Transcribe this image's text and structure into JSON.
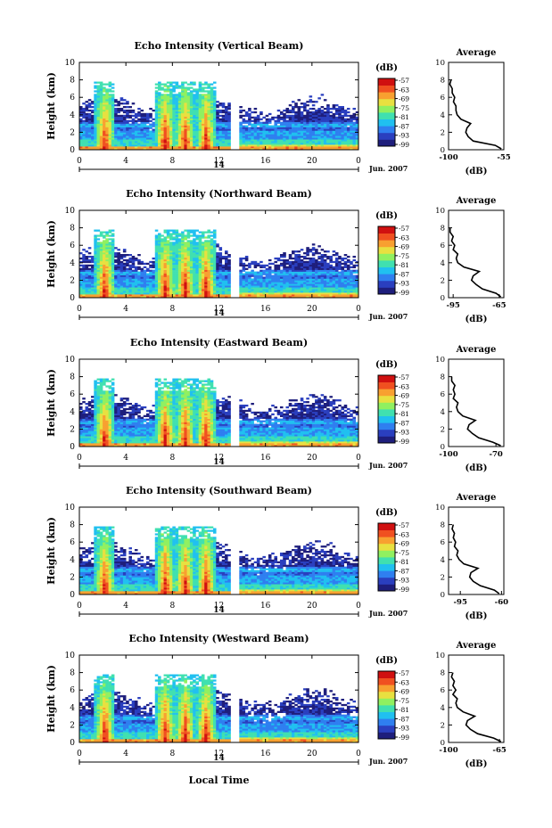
{
  "figure": {
    "xlabel": "Local Time",
    "date_label": "Jun. 2007",
    "day_label": "14",
    "unit_label": "(dB)",
    "colorbar_ticks": [
      "-57",
      "-63",
      "-69",
      "-75",
      "-81",
      "-87",
      "-93",
      "-99"
    ],
    "colors": {
      "colormap": [
        "#1e1e7c",
        "#2a3fbf",
        "#2f7ff0",
        "#20c0f0",
        "#40e0b0",
        "#90f060",
        "#e8e040",
        "#f8a030",
        "#f05020",
        "#d01010"
      ],
      "axis": "#000000",
      "profile_line": "#000000"
    }
  },
  "chart_data": [
    {
      "type": "heatmap",
      "title": "Echo Intensity (Vertical Beam)",
      "ylabel": "Height (km)",
      "x_ticks": [
        "0",
        "4",
        "8",
        "12",
        "16",
        "20",
        "0"
      ],
      "y_ticks": [
        "0",
        "2",
        "4",
        "6",
        "8",
        "10"
      ],
      "xlim": [
        0,
        24
      ],
      "ylim": [
        0,
        10
      ],
      "colorbar_range_db": [
        -99,
        -57
      ],
      "data_gap_hours": [
        13.0,
        13.5
      ],
      "convective_bursts_hours": [
        2.2,
        7.4,
        9.1,
        10.9
      ],
      "profile": {
        "title": "Average",
        "xlabel": "(dB)",
        "x_ticks": [
          "-100",
          "-55"
        ],
        "y_ticks": [
          "0",
          "2",
          "4",
          "6",
          "8",
          "10"
        ],
        "ylim": [
          0,
          10
        ],
        "xlim": [
          -100,
          -55
        ],
        "height_km": [
          0.1,
          0.5,
          1.0,
          1.5,
          2.0,
          2.5,
          3.0,
          3.5,
          4.0,
          4.5,
          5.0,
          5.5,
          6.0,
          6.5,
          7.0,
          7.5,
          8.0
        ],
        "db": [
          -57,
          -62,
          -80,
          -84,
          -86,
          -85,
          -82,
          -90,
          -93,
          -94,
          -94,
          -96,
          -95,
          -97,
          -97,
          -99,
          -98
        ]
      }
    },
    {
      "type": "heatmap",
      "title": "Echo Intensity (Northward Beam)",
      "ylabel": "Height (km)",
      "x_ticks": [
        "0",
        "4",
        "8",
        "12",
        "16",
        "20",
        "0"
      ],
      "y_ticks": [
        "0",
        "2",
        "4",
        "6",
        "8",
        "10"
      ],
      "xlim": [
        0,
        24
      ],
      "ylim": [
        0,
        10
      ],
      "colorbar_range_db": [
        -99,
        -57
      ],
      "data_gap_hours": [
        13.0,
        13.5
      ],
      "convective_bursts_hours": [
        2.2,
        7.4,
        9.1,
        10.9
      ],
      "profile": {
        "title": "Average",
        "xlabel": "(dB)",
        "x_ticks": [
          "-95",
          "-65"
        ],
        "y_ticks": [
          "0",
          "2",
          "4",
          "6",
          "8",
          "10"
        ],
        "ylim": [
          0,
          10
        ],
        "xlim": [
          -98,
          -62
        ],
        "height_km": [
          0.1,
          0.5,
          1.0,
          1.5,
          2.0,
          2.5,
          3.0,
          3.5,
          4.0,
          4.5,
          5.0,
          5.5,
          6.0,
          6.5,
          7.0,
          7.5,
          8.0
        ],
        "db": [
          -64,
          -67,
          -76,
          -80,
          -83,
          -82,
          -78,
          -88,
          -92,
          -93,
          -92,
          -95,
          -94,
          -96,
          -95,
          -97,
          -97
        ]
      }
    },
    {
      "type": "heatmap",
      "title": "Echo Intensity (Eastward Beam)",
      "ylabel": "Height (km)",
      "x_ticks": [
        "0",
        "4",
        "8",
        "12",
        "16",
        "20",
        "0"
      ],
      "y_ticks": [
        "0",
        "2",
        "4",
        "6",
        "8",
        "10"
      ],
      "xlim": [
        0,
        24
      ],
      "ylim": [
        0,
        10
      ],
      "colorbar_range_db": [
        -99,
        -57
      ],
      "data_gap_hours": [
        13.0,
        13.5
      ],
      "convective_bursts_hours": [
        2.2,
        7.4,
        9.1,
        10.9
      ],
      "profile": {
        "title": "Average",
        "xlabel": "(dB)",
        "x_ticks": [
          "-100",
          "-70"
        ],
        "y_ticks": [
          "0",
          "2",
          "4",
          "6",
          "8",
          "10"
        ],
        "ylim": [
          0,
          10
        ],
        "xlim": [
          -100,
          -65
        ],
        "height_km": [
          0.1,
          0.5,
          1.0,
          1.5,
          2.0,
          2.5,
          3.0,
          3.5,
          4.0,
          4.5,
          5.0,
          5.5,
          6.0,
          6.5,
          7.0,
          7.5,
          8.0
        ],
        "db": [
          -67,
          -72,
          -81,
          -85,
          -88,
          -87,
          -83,
          -91,
          -94,
          -95,
          -94,
          -97,
          -96,
          -97,
          -96,
          -98,
          -98
        ]
      }
    },
    {
      "type": "heatmap",
      "title": "Echo Intensity (Southward Beam)",
      "ylabel": "Height (km)",
      "x_ticks": [
        "0",
        "4",
        "8",
        "12",
        "16",
        "20",
        "0"
      ],
      "y_ticks": [
        "0",
        "2",
        "4",
        "6",
        "8",
        "10"
      ],
      "xlim": [
        0,
        24
      ],
      "ylim": [
        0,
        10
      ],
      "colorbar_range_db": [
        -99,
        -57
      ],
      "data_gap_hours": [
        13.0,
        13.5
      ],
      "convective_bursts_hours": [
        2.2,
        7.4,
        9.1,
        10.9
      ],
      "profile": {
        "title": "Average",
        "xlabel": "(dB)",
        "x_ticks": [
          "-95",
          "-60"
        ],
        "y_ticks": [
          "0",
          "2",
          "4",
          "6",
          "8",
          "10"
        ],
        "ylim": [
          0,
          10
        ],
        "xlim": [
          -105,
          -58
        ],
        "height_km": [
          0.1,
          0.5,
          1.0,
          1.5,
          2.0,
          2.5,
          3.0,
          3.5,
          4.0,
          4.5,
          5.0,
          5.5,
          6.0,
          6.5,
          7.0,
          7.5,
          8.0
        ],
        "db": [
          -62,
          -66,
          -78,
          -84,
          -87,
          -86,
          -80,
          -92,
          -96,
          -98,
          -97,
          -100,
          -99,
          -101,
          -100,
          -102,
          -101
        ]
      }
    },
    {
      "type": "heatmap",
      "title": "Echo Intensity (Westward Beam)",
      "ylabel": "Height (km)",
      "x_ticks": [
        "0",
        "4",
        "8",
        "12",
        "16",
        "20",
        "0"
      ],
      "y_ticks": [
        "0",
        "2",
        "4",
        "6",
        "8",
        "10"
      ],
      "xlim": [
        0,
        24
      ],
      "ylim": [
        0,
        10
      ],
      "colorbar_range_db": [
        -99,
        -57
      ],
      "data_gap_hours": [
        13.0,
        13.5
      ],
      "convective_bursts_hours": [
        2.2,
        7.4,
        9.1,
        10.9
      ],
      "profile": {
        "title": "Average",
        "xlabel": "(dB)",
        "x_ticks": [
          "-100",
          "-65"
        ],
        "y_ticks": [
          "0",
          "2",
          "4",
          "6",
          "8",
          "10"
        ],
        "ylim": [
          0,
          10
        ],
        "xlim": [
          -100,
          -62
        ],
        "height_km": [
          0.1,
          0.5,
          1.0,
          1.5,
          2.0,
          2.5,
          3.0,
          3.5,
          4.0,
          4.5,
          5.0,
          5.5,
          6.0,
          6.5,
          7.0,
          7.5,
          8.0
        ],
        "db": [
          -64,
          -69,
          -80,
          -85,
          -88,
          -87,
          -82,
          -90,
          -94,
          -95,
          -94,
          -97,
          -95,
          -97,
          -96,
          -98,
          -97
        ]
      }
    }
  ]
}
